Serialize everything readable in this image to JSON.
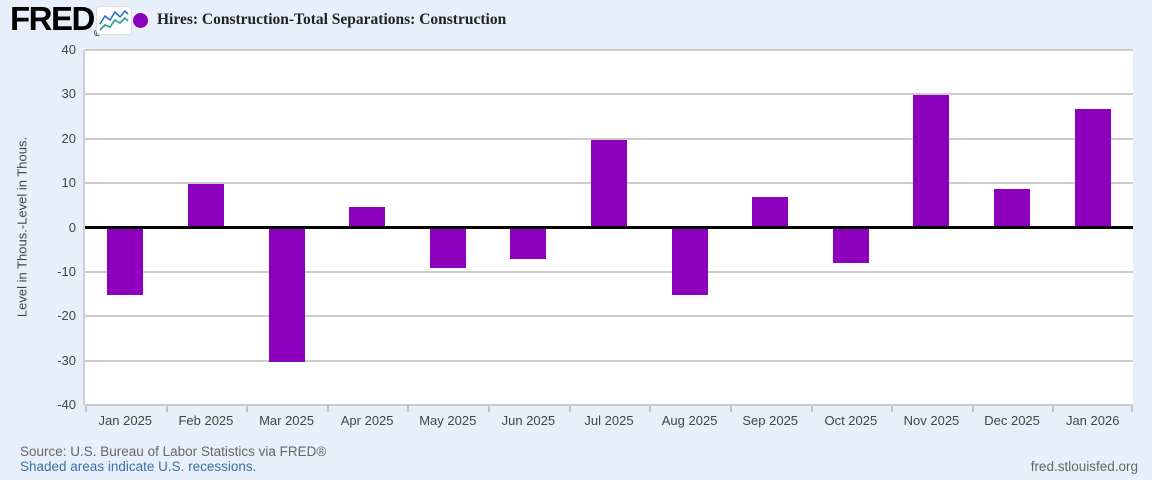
{
  "header": {
    "logo_text": "FRED",
    "logo_registered": "®",
    "series_label": "Hires: Construction-Total Separations: Construction"
  },
  "footer": {
    "source_text": "Source: U.S. Bureau of Labor Statistics via FRED®",
    "recessions_link": "Shaded areas indicate U.S. recessions.",
    "site_url": "fred.stlouisfed.org"
  },
  "colors": {
    "background": "#e7f0fa",
    "plot_background": "#ffffff",
    "bar": "#8c00be",
    "gridline": "#cccccc",
    "zero_line": "#000000",
    "axis_text": "#444444",
    "title_text": "#222222",
    "source_text": "#666666",
    "link_text": "#3f6ea6"
  },
  "chart_data": {
    "type": "bar",
    "title": "Hires: Construction-Total Separations: Construction",
    "categories": [
      "Jan 2025",
      "Feb 2025",
      "Mar 2025",
      "Apr 2025",
      "May 2025",
      "Jun 2025",
      "Jul 2025",
      "Aug 2025",
      "Sep 2025",
      "Oct 2025",
      "Nov 2025",
      "Dec 2025",
      "Jan 2026"
    ],
    "values": [
      -15.3,
      9.7,
      -30.4,
      4.7,
      -9.1,
      -7.2,
      19.7,
      -15.3,
      6.8,
      -8.0,
      29.8,
      8.7,
      26.8
    ],
    "xlabel": "",
    "ylabel": "Level in Thous.-Level in Thous.",
    "ylim": [
      -40,
      40
    ],
    "yticks": [
      40,
      30,
      20,
      10,
      0,
      -10,
      -20,
      -30,
      -40
    ],
    "grid": true,
    "legend_position": "top-left",
    "series_color": "#8c00be"
  }
}
